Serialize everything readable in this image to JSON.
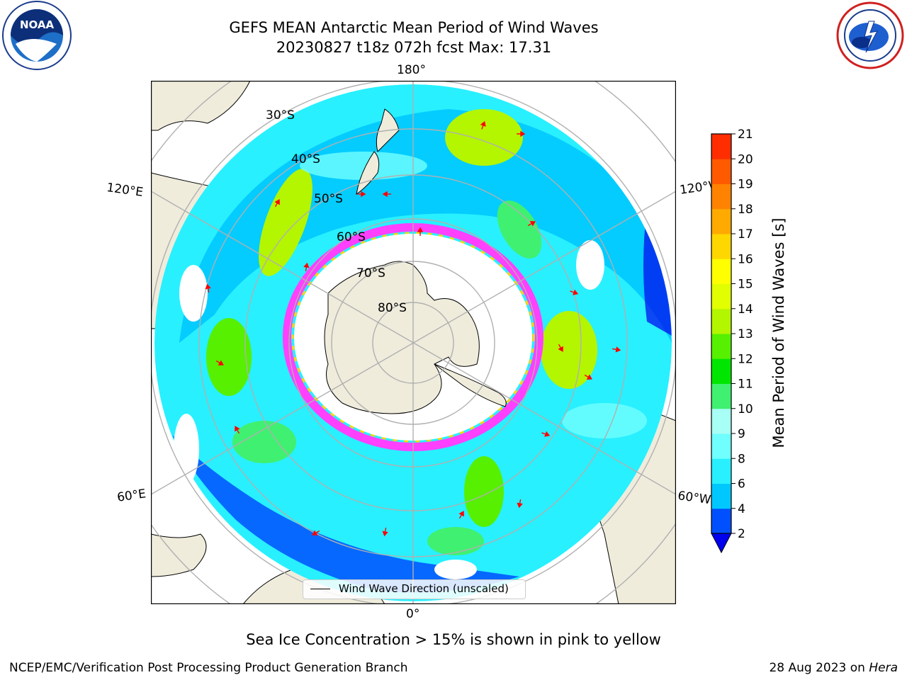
{
  "header": {
    "title_line1": "GEFS MEAN Antarctic Mean Period of Wind Waves",
    "title_line2": "20230827 t18z 072h fcst   Max: 17.31"
  },
  "logos": {
    "left": {
      "icon": "noaa-logo-icon",
      "text": "NOAA"
    },
    "right": {
      "icon": "nws-logo-icon"
    }
  },
  "map": {
    "projection": "south-polar-stereographic",
    "longitude_labels": {
      "top": "180°",
      "bottom": "0°",
      "upper_left": "120°E",
      "upper_right": "120°W",
      "lower_left": "60°E",
      "lower_right": "60°W"
    },
    "latitude_labels": [
      "30°S",
      "40°S",
      "50°S",
      "60°S",
      "70°S",
      "80°S"
    ],
    "legend": {
      "label": "Wind Wave Direction (unscaled)"
    }
  },
  "colorbar": {
    "label": "Mean Period of Wind Waves [s]",
    "ticks": [
      "2",
      "4",
      "6",
      "8",
      "9",
      "10",
      "11",
      "12",
      "13",
      "14",
      "15",
      "16",
      "17",
      "18",
      "19",
      "20",
      "21"
    ],
    "colors": [
      "#0050ff",
      "#00c8ff",
      "#28f0ff",
      "#70ffff",
      "#a8fff5",
      "#40f070",
      "#00e600",
      "#56f000",
      "#b4f500",
      "#e1ff00",
      "#ffff00",
      "#ffd700",
      "#ffaa00",
      "#ff8200",
      "#ff5a00",
      "#ff2d00"
    ],
    "extend_color": "#0000ee"
  },
  "footer": {
    "note": "Sea Ice Concentration > 15% is shown in pink to yellow",
    "org": "NCEP/EMC/Verification Post Processing Product Generation Branch",
    "date_prefix": "28 Aug 2023 on ",
    "system": "Hera"
  }
}
